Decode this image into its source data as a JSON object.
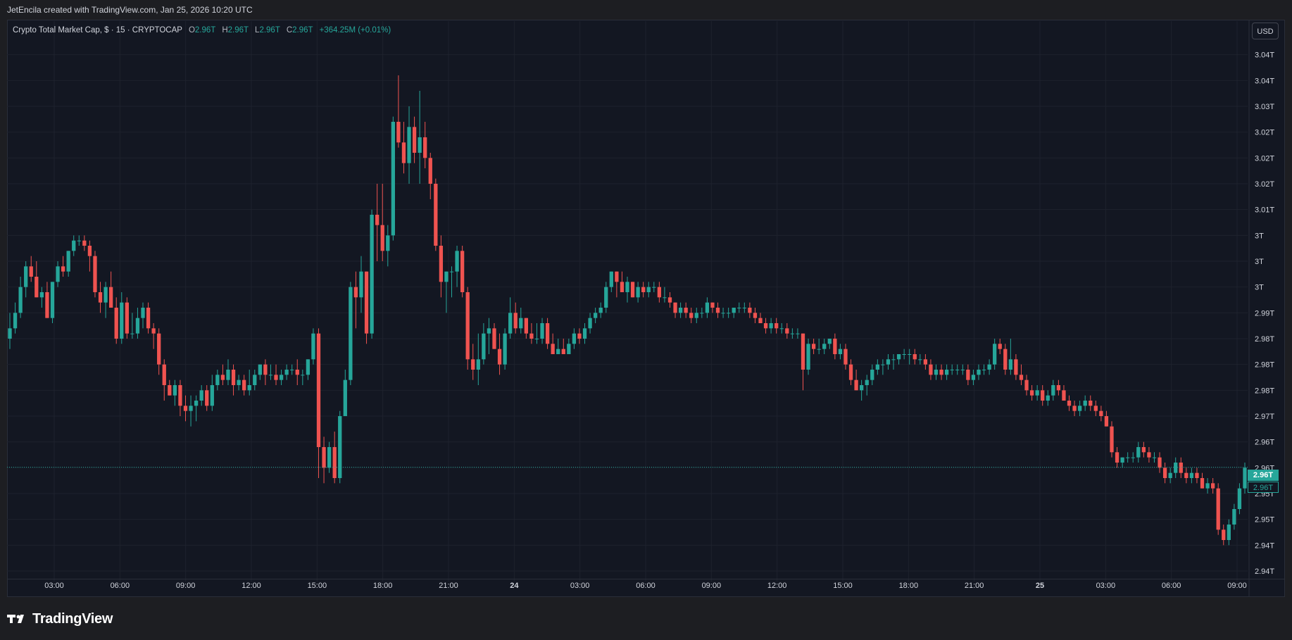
{
  "header": {
    "attribution": "JetEncila created with TradingView.com, Jan 25, 2026 10:20 UTC"
  },
  "legend": {
    "symbol": "Crypto Total Market Cap, $ · 15 · CRYPTOCAP",
    "open_label": "O",
    "open": "2.96T",
    "high_label": "H",
    "high": "2.96T",
    "low_label": "L",
    "low": "2.96T",
    "close_label": "C",
    "close": "2.96T",
    "change": "+364.25M (+0.01%)"
  },
  "currency_button": "USD",
  "price_tags": {
    "last": "2.96T",
    "secondary": "2.96T"
  },
  "footer": {
    "brand": "TradingView"
  },
  "colors": {
    "up": "#26a69a",
    "down": "#ef5350",
    "background": "#131722",
    "grid": "#1e222d",
    "text": "#d1d4dc"
  },
  "chart_data": {
    "type": "candlestick",
    "title": "Crypto Total Market Cap, $ · 15 · CRYPTOCAP",
    "interval": "15",
    "xlabel": "",
    "ylabel": "",
    "y_unit": "T USD",
    "ylim": [
      2.9385,
      3.0435
    ],
    "y_ticks": [
      3.04,
      3.035,
      3.03,
      3.025,
      3.02,
      3.015,
      3.01,
      3.005,
      3.0,
      2.995,
      2.99,
      2.985,
      2.98,
      2.975,
      2.97,
      2.965,
      2.96,
      2.955,
      2.95,
      2.945,
      2.94
    ],
    "y_tick_labels": [
      "3.04T",
      "3.04T",
      "3.03T",
      "3.02T",
      "3.02T",
      "3.02T",
      "3.01T",
      "3T",
      "3T",
      "3T",
      "2.99T",
      "2.98T",
      "2.98T",
      "2.98T",
      "2.97T",
      "2.96T",
      "2.96T",
      "2.95T",
      "2.95T",
      "2.94T",
      "2.94T"
    ],
    "x_ticks": [
      "03:00",
      "06:00",
      "09:00",
      "12:00",
      "15:00",
      "18:00",
      "21:00",
      "24",
      "03:00",
      "06:00",
      "09:00",
      "12:00",
      "15:00",
      "18:00",
      "21:00",
      "25",
      "03:00",
      "06:00",
      "09:00"
    ],
    "last_price": 2.9601,
    "grid": true,
    "legend_position": "top-left",
    "candles": [
      [
        2.985,
        2.99,
        2.983,
        2.987
      ],
      [
        2.987,
        2.992,
        2.986,
        2.99
      ],
      [
        2.99,
        2.997,
        2.989,
        2.995
      ],
      [
        2.995,
        3.0,
        2.993,
        2.999
      ],
      [
        2.999,
        3.001,
        2.996,
        2.997
      ],
      [
        2.997,
        3.0,
        2.993,
        2.993
      ],
      [
        2.993,
        2.995,
        2.991,
        2.994
      ],
      [
        2.994,
        2.996,
        2.989,
        2.989
      ],
      [
        2.989,
        2.996,
        2.988,
        2.996
      ],
      [
        2.996,
        3.0,
        2.995,
        2.999
      ],
      [
        2.999,
        3.001,
        2.997,
        2.998
      ],
      [
        2.998,
        3.002,
        2.997,
        3.002
      ],
      [
        3.002,
        3.005,
        3.001,
        3.004
      ],
      [
        3.004,
        3.005,
        3.003,
        3.004
      ],
      [
        3.004,
        3.005,
        3.002,
        3.003
      ],
      [
        3.003,
        3.004,
        2.998,
        3.001
      ],
      [
        3.001,
        3.002,
        2.993,
        2.994
      ],
      [
        2.994,
        2.996,
        2.99,
        2.992
      ],
      [
        2.992,
        2.996,
        2.989,
        2.995
      ],
      [
        2.995,
        2.998,
        2.991,
        2.991
      ],
      [
        2.991,
        2.993,
        2.984,
        2.985
      ],
      [
        2.985,
        2.994,
        2.984,
        2.992
      ],
      [
        2.992,
        2.993,
        2.985,
        2.986
      ],
      [
        2.986,
        2.99,
        2.985,
        2.986
      ],
      [
        2.986,
        2.991,
        2.985,
        2.989
      ],
      [
        2.989,
        2.992,
        2.987,
        2.991
      ],
      [
        2.991,
        2.992,
        2.986,
        2.987
      ],
      [
        2.987,
        2.988,
        2.983,
        2.986
      ],
      [
        2.986,
        2.987,
        2.978,
        2.98
      ],
      [
        2.98,
        2.981,
        2.973,
        2.976
      ],
      [
        2.976,
        2.977,
        2.974,
        2.974
      ],
      [
        2.974,
        2.977,
        2.972,
        2.976
      ],
      [
        2.976,
        2.977,
        2.97,
        2.972
      ],
      [
        2.972,
        2.974,
        2.969,
        2.971
      ],
      [
        2.971,
        2.974,
        2.968,
        2.972
      ],
      [
        2.972,
        2.974,
        2.969,
        2.973
      ],
      [
        2.973,
        2.976,
        2.972,
        2.975
      ],
      [
        2.975,
        2.976,
        2.971,
        2.972
      ],
      [
        2.972,
        2.978,
        2.971,
        2.976
      ],
      [
        2.976,
        2.979,
        2.975,
        2.978
      ],
      [
        2.978,
        2.98,
        2.976,
        2.977
      ],
      [
        2.977,
        2.981,
        2.976,
        2.979
      ],
      [
        2.979,
        2.98,
        2.974,
        2.976
      ],
      [
        2.976,
        2.978,
        2.975,
        2.977
      ],
      [
        2.977,
        2.978,
        2.974,
        2.975
      ],
      [
        2.975,
        2.979,
        2.974,
        2.976
      ],
      [
        2.976,
        2.979,
        2.975,
        2.978
      ],
      [
        2.978,
        2.98,
        2.977,
        2.98
      ],
      [
        2.98,
        2.981,
        2.976,
        2.978
      ],
      [
        2.978,
        2.98,
        2.977,
        2.978
      ],
      [
        2.978,
        2.98,
        2.976,
        2.977
      ],
      [
        2.977,
        2.979,
        2.976,
        2.978
      ],
      [
        2.978,
        2.98,
        2.977,
        2.979
      ],
      [
        2.979,
        2.98,
        2.978,
        2.979
      ],
      [
        2.979,
        2.981,
        2.976,
        2.978
      ],
      [
        2.978,
        2.979,
        2.976,
        2.978
      ],
      [
        2.978,
        2.981,
        2.977,
        2.981
      ],
      [
        2.981,
        2.987,
        2.98,
        2.986
      ],
      [
        2.986,
        2.987,
        2.958,
        2.964
      ],
      [
        2.964,
        2.966,
        2.957,
        2.96
      ],
      [
        2.96,
        2.965,
        2.959,
        2.964
      ],
      [
        2.964,
        2.967,
        2.957,
        2.958
      ],
      [
        2.958,
        2.971,
        2.957,
        2.97
      ],
      [
        2.97,
        2.979,
        2.97,
        2.977
      ],
      [
        2.977,
        2.996,
        2.976,
        2.995
      ],
      [
        2.995,
        2.998,
        2.987,
        2.993
      ],
      [
        2.993,
        3.001,
        2.99,
        2.998
      ],
      [
        2.998,
        2.998,
        2.984,
        2.986
      ],
      [
        2.986,
        3.01,
        2.985,
        3.009
      ],
      [
        3.009,
        3.015,
        3.0,
        3.007
      ],
      [
        3.007,
        3.015,
        3.0,
        3.002
      ],
      [
        3.002,
        3.007,
        2.999,
        3.005
      ],
      [
        3.005,
        3.028,
        3.004,
        3.027
      ],
      [
        3.027,
        3.036,
        3.022,
        3.023
      ],
      [
        3.023,
        3.027,
        3.017,
        3.019
      ],
      [
        3.019,
        3.03,
        3.015,
        3.026
      ],
      [
        3.026,
        3.028,
        3.019,
        3.021
      ],
      [
        3.021,
        3.033,
        3.015,
        3.024
      ],
      [
        3.024,
        3.027,
        3.018,
        3.02
      ],
      [
        3.02,
        3.021,
        3.012,
        3.015
      ],
      [
        3.015,
        3.016,
        3.002,
        3.003
      ],
      [
        3.003,
        3.005,
        2.993,
        2.996
      ],
      [
        2.996,
        2.998,
        2.99,
        2.998
      ],
      [
        2.998,
        2.999,
        2.993,
        2.998
      ],
      [
        2.998,
        3.003,
        2.995,
        3.002
      ],
      [
        3.002,
        3.003,
        2.993,
        2.994
      ],
      [
        2.994,
        2.995,
        2.979,
        2.981
      ],
      [
        2.981,
        2.984,
        2.977,
        2.979
      ],
      [
        2.979,
        2.986,
        2.976,
        2.981
      ],
      [
        2.981,
        2.988,
        2.98,
        2.986
      ],
      [
        2.986,
        2.989,
        2.982,
        2.987
      ],
      [
        2.987,
        2.988,
        2.983,
        2.983
      ],
      [
        2.983,
        2.986,
        2.978,
        2.98
      ],
      [
        2.98,
        2.987,
        2.979,
        2.986
      ],
      [
        2.986,
        2.993,
        2.985,
        2.99
      ],
      [
        2.99,
        2.992,
        2.986,
        2.987
      ],
      [
        2.987,
        2.991,
        2.986,
        2.989
      ],
      [
        2.989,
        2.989,
        2.985,
        2.986
      ],
      [
        2.986,
        2.988,
        2.984,
        2.985
      ],
      [
        2.985,
        2.988,
        2.984,
        2.985
      ],
      [
        2.985,
        2.989,
        2.984,
        2.988
      ],
      [
        2.988,
        2.989,
        2.983,
        2.984
      ],
      [
        2.984,
        2.986,
        2.982,
        2.982
      ],
      [
        2.982,
        2.985,
        2.982,
        2.983
      ],
      [
        2.983,
        2.985,
        2.982,
        2.982
      ],
      [
        2.982,
        2.985,
        2.982,
        2.984
      ],
      [
        2.984,
        2.987,
        2.983,
        2.986
      ],
      [
        2.986,
        2.987,
        2.984,
        2.985
      ],
      [
        2.985,
        2.988,
        2.984,
        2.987
      ],
      [
        2.987,
        2.99,
        2.986,
        2.989
      ],
      [
        2.989,
        2.991,
        2.988,
        2.99
      ],
      [
        2.99,
        2.992,
        2.989,
        2.991
      ],
      [
        2.991,
        2.996,
        2.99,
        2.995
      ],
      [
        2.995,
        2.998,
        2.994,
        2.998
      ],
      [
        2.998,
        2.998,
        2.993,
        2.996
      ],
      [
        2.996,
        2.998,
        2.994,
        2.994
      ],
      [
        2.994,
        2.997,
        2.992,
        2.996
      ],
      [
        2.996,
        2.996,
        2.993,
        2.993
      ],
      [
        2.993,
        2.996,
        2.992,
        2.995
      ],
      [
        2.995,
        2.996,
        2.993,
        2.994
      ],
      [
        2.994,
        2.996,
        2.993,
        2.995
      ],
      [
        2.995,
        2.996,
        2.994,
        2.995
      ],
      [
        2.995,
        2.996,
        2.992,
        2.993
      ],
      [
        2.993,
        2.995,
        2.992,
        2.993
      ],
      [
        2.993,
        2.994,
        2.991,
        2.992
      ],
      [
        2.992,
        2.992,
        2.989,
        2.99
      ],
      [
        2.99,
        2.992,
        2.989,
        2.991
      ],
      [
        2.991,
        2.992,
        2.989,
        2.99
      ],
      [
        2.99,
        2.991,
        2.988,
        2.989
      ],
      [
        2.989,
        2.991,
        2.988,
        2.99
      ],
      [
        2.99,
        2.991,
        2.989,
        2.99
      ],
      [
        2.99,
        2.993,
        2.989,
        2.992
      ],
      [
        2.992,
        2.992,
        2.99,
        2.991
      ],
      [
        2.991,
        2.992,
        2.989,
        2.99
      ],
      [
        2.99,
        2.991,
        2.989,
        2.99
      ],
      [
        2.99,
        2.991,
        2.989,
        2.99
      ],
      [
        2.99,
        2.991,
        2.989,
        2.991
      ],
      [
        2.991,
        2.992,
        2.99,
        2.991
      ],
      [
        2.991,
        2.992,
        2.99,
        2.991
      ],
      [
        2.991,
        2.992,
        2.989,
        2.99
      ],
      [
        2.99,
        2.991,
        2.988,
        2.989
      ],
      [
        2.989,
        2.99,
        2.988,
        2.988
      ],
      [
        2.988,
        2.989,
        2.986,
        2.987
      ],
      [
        2.987,
        2.989,
        2.986,
        2.988
      ],
      [
        2.988,
        2.989,
        2.986,
        2.987
      ],
      [
        2.987,
        2.988,
        2.986,
        2.987
      ],
      [
        2.987,
        2.988,
        2.985,
        2.986
      ],
      [
        2.986,
        2.987,
        2.985,
        2.986
      ],
      [
        2.986,
        2.987,
        2.985,
        2.986
      ],
      [
        2.986,
        2.986,
        2.975,
        2.979
      ],
      [
        2.979,
        2.985,
        2.978,
        2.984
      ],
      [
        2.984,
        2.985,
        2.982,
        2.983
      ],
      [
        2.983,
        2.985,
        2.982,
        2.983
      ],
      [
        2.983,
        2.985,
        2.982,
        2.984
      ],
      [
        2.984,
        2.985,
        2.983,
        2.985
      ],
      [
        2.985,
        2.986,
        2.981,
        2.982
      ],
      [
        2.982,
        2.984,
        2.981,
        2.983
      ],
      [
        2.983,
        2.984,
        2.979,
        2.98
      ],
      [
        2.98,
        2.981,
        2.976,
        2.977
      ],
      [
        2.977,
        2.979,
        2.975,
        2.975
      ],
      [
        2.975,
        2.977,
        2.973,
        2.976
      ],
      [
        2.976,
        2.978,
        2.974,
        2.977
      ],
      [
        2.977,
        2.98,
        2.976,
        2.979
      ],
      [
        2.979,
        2.981,
        2.978,
        2.98
      ],
      [
        2.98,
        2.981,
        2.978,
        2.98
      ],
      [
        2.98,
        2.982,
        2.979,
        2.981
      ],
      [
        2.981,
        2.982,
        2.979,
        2.981
      ],
      [
        2.981,
        2.982,
        2.98,
        2.982
      ],
      [
        2.982,
        2.983,
        2.981,
        2.982
      ],
      [
        2.982,
        2.983,
        2.98,
        2.982
      ],
      [
        2.982,
        2.983,
        2.98,
        2.981
      ],
      [
        2.981,
        2.982,
        2.98,
        2.981
      ],
      [
        2.981,
        2.982,
        2.979,
        2.98
      ],
      [
        2.98,
        2.981,
        2.977,
        2.978
      ],
      [
        2.978,
        2.98,
        2.977,
        2.979
      ],
      [
        2.979,
        2.98,
        2.977,
        2.978
      ],
      [
        2.978,
        2.98,
        2.977,
        2.979
      ],
      [
        2.979,
        2.98,
        2.978,
        2.979
      ],
      [
        2.979,
        2.98,
        2.978,
        2.979
      ],
      [
        2.979,
        2.98,
        2.978,
        2.979
      ],
      [
        2.979,
        2.98,
        2.976,
        2.977
      ],
      [
        2.977,
        2.979,
        2.976,
        2.978
      ],
      [
        2.978,
        2.98,
        2.977,
        2.979
      ],
      [
        2.979,
        2.98,
        2.978,
        2.979
      ],
      [
        2.979,
        2.981,
        2.978,
        2.98
      ],
      [
        2.98,
        2.985,
        2.979,
        2.984
      ],
      [
        2.984,
        2.985,
        2.982,
        2.983
      ],
      [
        2.983,
        2.984,
        2.978,
        2.979
      ],
      [
        2.979,
        2.985,
        2.978,
        2.981
      ],
      [
        2.981,
        2.982,
        2.977,
        2.978
      ],
      [
        2.978,
        2.98,
        2.976,
        2.977
      ],
      [
        2.977,
        2.978,
        2.974,
        2.975
      ],
      [
        2.975,
        2.976,
        2.973,
        2.974
      ],
      [
        2.974,
        2.976,
        2.973,
        2.975
      ],
      [
        2.975,
        2.976,
        2.972,
        2.973
      ],
      [
        2.973,
        2.975,
        2.972,
        2.974
      ],
      [
        2.974,
        2.977,
        2.973,
        2.976
      ],
      [
        2.976,
        2.977,
        2.974,
        2.975
      ],
      [
        2.975,
        2.976,
        2.973,
        2.973
      ],
      [
        2.973,
        2.974,
        2.971,
        2.972
      ],
      [
        2.972,
        2.973,
        2.97,
        2.971
      ],
      [
        2.971,
        2.973,
        2.97,
        2.972
      ],
      [
        2.972,
        2.974,
        2.971,
        2.973
      ],
      [
        2.973,
        2.974,
        2.971,
        2.972
      ],
      [
        2.972,
        2.973,
        2.97,
        2.971
      ],
      [
        2.971,
        2.972,
        2.969,
        2.97
      ],
      [
        2.97,
        2.971,
        2.968,
        2.968
      ],
      [
        2.968,
        2.969,
        2.962,
        2.963
      ],
      [
        2.963,
        2.964,
        2.96,
        2.961
      ],
      [
        2.961,
        2.962,
        2.96,
        2.962
      ],
      [
        2.962,
        2.963,
        2.961,
        2.962
      ],
      [
        2.962,
        2.963,
        2.961,
        2.962
      ],
      [
        2.962,
        2.965,
        2.961,
        2.964
      ],
      [
        2.964,
        2.965,
        2.962,
        2.963
      ],
      [
        2.963,
        2.964,
        2.961,
        2.962
      ],
      [
        2.962,
        2.963,
        2.961,
        2.962
      ],
      [
        2.962,
        2.963,
        2.959,
        2.96
      ],
      [
        2.96,
        2.961,
        2.957,
        2.958
      ],
      [
        2.958,
        2.96,
        2.957,
        2.959
      ],
      [
        2.959,
        2.962,
        2.958,
        2.961
      ],
      [
        2.961,
        2.962,
        2.958,
        2.959
      ],
      [
        2.959,
        2.96,
        2.957,
        2.958
      ],
      [
        2.958,
        2.96,
        2.957,
        2.959
      ],
      [
        2.959,
        2.96,
        2.957,
        2.958
      ],
      [
        2.958,
        2.959,
        2.956,
        2.956
      ],
      [
        2.956,
        2.958,
        2.955,
        2.957
      ],
      [
        2.957,
        2.958,
        2.955,
        2.956
      ],
      [
        2.956,
        2.957,
        2.947,
        2.948
      ],
      [
        2.948,
        2.949,
        2.945,
        2.946
      ],
      [
        2.946,
        2.95,
        2.945,
        2.949
      ],
      [
        2.949,
        2.953,
        2.948,
        2.952
      ],
      [
        2.952,
        2.957,
        2.951,
        2.956
      ],
      [
        2.956,
        2.961,
        2.955,
        2.96
      ]
    ]
  }
}
